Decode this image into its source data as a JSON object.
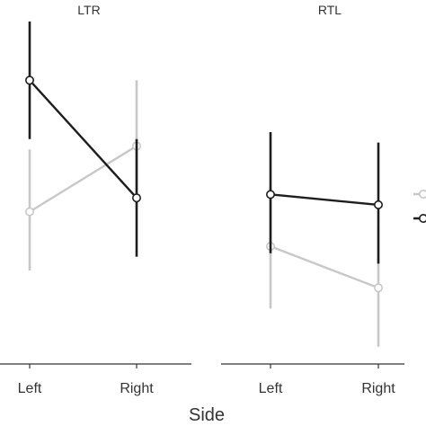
{
  "chart_data": {
    "type": "line",
    "xlabel": "Side",
    "ylabel": "",
    "categories": [
      "Left",
      "Right"
    ],
    "grid": false,
    "legend": "right",
    "colors": {
      "light_series": "#c8c8c8",
      "dark_series": "#1e1e1e",
      "axis": "#333333"
    },
    "ylim": [
      0,
      10
    ],
    "panels": [
      {
        "title": "LTR",
        "series": [
          {
            "color": "#c8c8c8",
            "points": [
              {
                "x": "Left",
                "y": 4.4,
                "lower": 2.7,
                "upper": 6.2
              },
              {
                "x": "Right",
                "y": 6.3,
                "lower": 4.5,
                "upper": 8.2
              }
            ]
          },
          {
            "color": "#1e1e1e",
            "points": [
              {
                "x": "Left",
                "y": 8.2,
                "lower": 6.5,
                "upper": 9.9
              },
              {
                "x": "Right",
                "y": 4.8,
                "lower": 3.1,
                "upper": 6.5
              }
            ]
          }
        ]
      },
      {
        "title": "RTL",
        "series": [
          {
            "color": "#c8c8c8",
            "points": [
              {
                "x": "Left",
                "y": 3.4,
                "lower": 1.6,
                "upper": 5.1
              },
              {
                "x": "Right",
                "y": 2.2,
                "lower": 0.5,
                "upper": 3.9
              }
            ]
          },
          {
            "color": "#1e1e1e",
            "points": [
              {
                "x": "Left",
                "y": 4.9,
                "lower": 3.2,
                "upper": 6.7
              },
              {
                "x": "Right",
                "y": 4.6,
                "lower": 2.9,
                "upper": 6.4
              }
            ]
          }
        ]
      }
    ]
  }
}
